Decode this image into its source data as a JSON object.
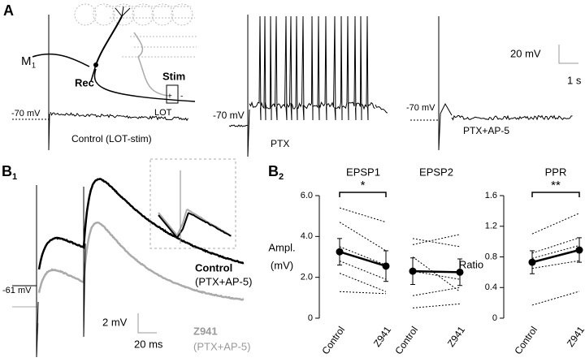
{
  "figure": {
    "panel_a": {
      "label": "A",
      "neuron": "M",
      "neuron_sub": "1",
      "rec": "Rec",
      "stim": "Stim",
      "lot": "LOT",
      "plus": "+",
      "minus": "-",
      "rest_1": "-70 mV",
      "rest_2": "-70 mV",
      "rest_3": "-70 mV",
      "trace_1": "Control (LOT-stim)",
      "trace_2": "PTX",
      "trace_3": "PTX+AP-5",
      "scale_v": "20 mV",
      "scale_t": "1 s"
    },
    "panel_b1": {
      "label": "B",
      "label_sub": "1",
      "rest": "-61 mV",
      "control": "Control",
      "control_cond": "(PTX+AP-5)",
      "drug": "Z941",
      "drug_cond": "(PTX+AP-5)",
      "scale_v": "2 mV",
      "scale_t": "20 ms"
    },
    "panel_b2": {
      "label": "B",
      "label_sub": "2"
    }
  },
  "chart_data": [
    {
      "type": "line",
      "title": "EPSP1",
      "ylabel": [
        "Ampl.",
        "(mV)"
      ],
      "significance": "*",
      "color": "#000",
      "categories": [
        "Control",
        "Z941"
      ],
      "ylim": [
        0,
        6
      ],
      "yticks": [
        0,
        {
          "value": 2,
          "label": "2.0"
        },
        {
          "value": 4,
          "label": "4.0"
        },
        {
          "value": 6,
          "label": "6.0"
        }
      ],
      "series": [
        {
          "style": "dotted",
          "values": [
            5.4,
            4.7
          ]
        },
        {
          "style": "dotted",
          "values": [
            4.7,
            3.3
          ]
        },
        {
          "style": "dotted",
          "values": [
            3.5,
            2.6
          ]
        },
        {
          "style": "dotted",
          "values": [
            2.8,
            1.9
          ]
        },
        {
          "style": "dotted",
          "values": [
            2.2,
            1.3
          ]
        },
        {
          "style": "dotted",
          "values": [
            1.3,
            1.2
          ]
        },
        {
          "style": "mean",
          "values": [
            3.25,
            2.55
          ],
          "errors": [
            0.65,
            0.75
          ]
        }
      ]
    },
    {
      "type": "line",
      "title": "EPSP2",
      "color": "#000",
      "categories": [
        "Control",
        "Z941"
      ],
      "ylim": [
        0,
        6
      ],
      "series": [
        {
          "style": "dotted",
          "values": [
            3.9,
            3.5
          ]
        },
        {
          "style": "dotted",
          "values": [
            3.6,
            4.1
          ]
        },
        {
          "style": "dotted",
          "values": [
            3.0,
            1.3
          ]
        },
        {
          "style": "dotted",
          "values": [
            2.3,
            1.9
          ]
        },
        {
          "style": "dotted",
          "values": [
            1.1,
            1.5
          ]
        },
        {
          "style": "dotted",
          "values": [
            0.5,
            0.7
          ]
        },
        {
          "style": "mean",
          "values": [
            2.3,
            2.25
          ],
          "errors": [
            0.65,
            0.65
          ]
        }
      ]
    },
    {
      "type": "line",
      "title": "PPR",
      "ylabel": [
        "Ratio"
      ],
      "significance": "**",
      "color": "#000",
      "categories": [
        "Control",
        "Z941"
      ],
      "ylim": [
        0,
        1.6
      ],
      "yticks": [
        0,
        0.4,
        0.8,
        1.2,
        1.6
      ],
      "series": [
        {
          "style": "dotted",
          "values": [
            1.1,
            1.37
          ]
        },
        {
          "style": "dotted",
          "values": [
            0.85,
            1.05
          ]
        },
        {
          "style": "dotted",
          "values": [
            0.78,
            0.95
          ]
        },
        {
          "style": "dotted",
          "values": [
            0.74,
            0.88
          ]
        },
        {
          "style": "dotted",
          "values": [
            0.65,
            0.75
          ]
        },
        {
          "style": "dotted",
          "values": [
            0.17,
            0.35
          ]
        },
        {
          "style": "mean",
          "values": [
            0.73,
            0.89
          ],
          "errors": [
            0.15,
            0.16
          ]
        }
      ]
    }
  ]
}
